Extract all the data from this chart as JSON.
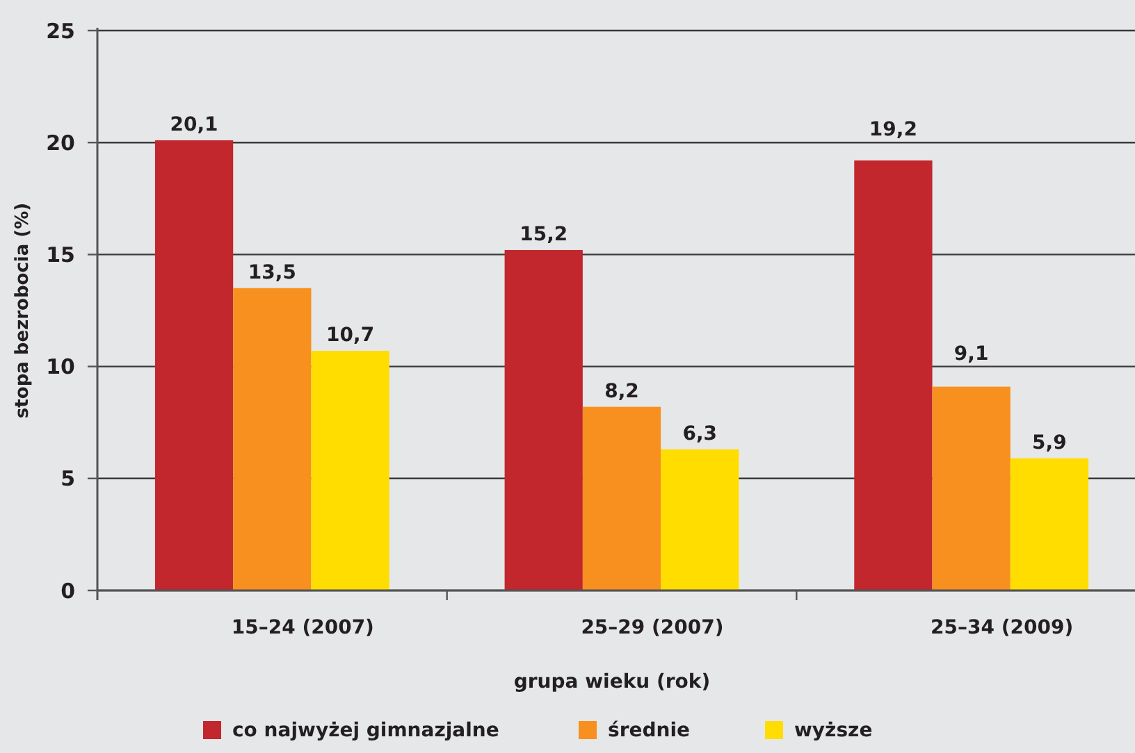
{
  "chart_data": {
    "type": "bar",
    "xlabel": "grupa wieku (rok)",
    "ylabel": "stopa bezrobocia (%)",
    "categories": [
      "15–24 (2007)",
      "25–29 (2007)",
      "25–34 (2009)"
    ],
    "series": [
      {
        "name": "co najwyżej gimnazjalne",
        "color": "#c1272d",
        "values": [
          20.1,
          15.2,
          19.2
        ],
        "value_labels": [
          "20,1",
          "15,2",
          "19,2"
        ]
      },
      {
        "name": "średnie",
        "color": "#f7901e",
        "values": [
          13.5,
          8.2,
          9.1
        ],
        "value_labels": [
          "13,5",
          "8,2",
          "9,1"
        ]
      },
      {
        "name": "wyższe",
        "color": "#ffdd00",
        "values": [
          10.7,
          6.3,
          5.9
        ],
        "value_labels": [
          "10,7",
          "6,3",
          "5,9"
        ]
      }
    ],
    "ylim": [
      0,
      25
    ],
    "yticks": [
      0,
      5,
      10,
      15,
      20,
      25
    ],
    "grid": "y",
    "legend": "bottom"
  }
}
